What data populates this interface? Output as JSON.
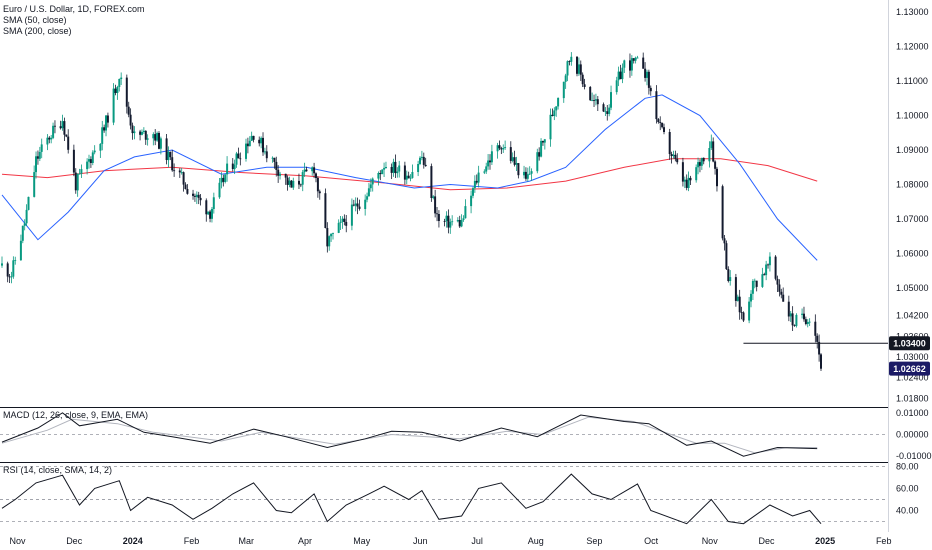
{
  "legend": {
    "title": "Euro / U.S. Dollar, 1D, FOREX.com",
    "sma50": "SMA (50, close)",
    "sma200": "SMA (200, close)"
  },
  "macd_title": "MACD (12, 26, close, 9, EMA, EMA)",
  "rsi_title": "RSI (14, close, SMA, 14, 2)",
  "colors": {
    "up": "#089981",
    "down": "#131a2e",
    "sma50": "#2962ff",
    "sma200": "#f23645",
    "label_level": "#131722",
    "label_price": "#1b1a66"
  },
  "chart_data": [
    {
      "type": "candlestick",
      "title": "Euro / U.S. Dollar, 1D, FOREX.com",
      "x_ticks": [
        "Nov",
        "Dec",
        "2024",
        "Feb",
        "Mar",
        "Apr",
        "May",
        "Jun",
        "Jul",
        "Aug",
        "Sep",
        "Oct",
        "Nov",
        "Dec",
        "2025",
        "Feb"
      ],
      "y_ticks": [
        "1.13000",
        "1.12000",
        "1.11000",
        "1.10000",
        "1.09000",
        "1.08000",
        "1.07000",
        "1.06000",
        "1.05000",
        "1.04200",
        "1.03600",
        "1.03000",
        "1.02400",
        "1.01800"
      ],
      "ylim": [
        1.0155,
        1.1335
      ],
      "anchors": [
        [
          "2023-10-27",
          1.0565
        ],
        [
          "2023-11-01",
          1.054
        ],
        [
          "2023-11-08",
          1.069
        ],
        [
          "2023-11-14",
          1.087
        ],
        [
          "2023-11-21",
          1.094
        ],
        [
          "2023-11-28",
          1.099
        ],
        [
          "2023-12-05",
          1.08
        ],
        [
          "2023-12-13",
          1.088
        ],
        [
          "2023-12-20",
          1.096
        ],
        [
          "2023-12-28",
          1.112
        ],
        [
          "2024-01-05",
          1.094
        ],
        [
          "2024-01-15",
          1.095
        ],
        [
          "2024-01-25",
          1.086
        ],
        [
          "2024-02-02",
          1.079
        ],
        [
          "2024-02-14",
          1.072
        ],
        [
          "2024-02-23",
          1.084
        ],
        [
          "2024-03-08",
          1.095
        ],
        [
          "2024-03-19",
          1.086
        ],
        [
          "2024-03-28",
          1.079
        ],
        [
          "2024-04-09",
          1.085
        ],
        [
          "2024-04-16",
          1.063
        ],
        [
          "2024-04-26",
          1.07
        ],
        [
          "2024-05-06",
          1.077
        ],
        [
          "2024-05-16",
          1.086
        ],
        [
          "2024-05-29",
          1.083
        ],
        [
          "2024-06-05",
          1.088
        ],
        [
          "2024-06-14",
          1.069
        ],
        [
          "2024-06-26",
          1.069
        ],
        [
          "2024-07-05",
          1.083
        ],
        [
          "2024-07-17",
          1.092
        ],
        [
          "2024-07-30",
          1.081
        ],
        [
          "2024-08-08",
          1.092
        ],
        [
          "2024-08-23",
          1.118
        ],
        [
          "2024-09-03",
          1.104
        ],
        [
          "2024-09-11",
          1.102
        ],
        [
          "2024-09-20",
          1.115
        ],
        [
          "2024-09-30",
          1.115
        ],
        [
          "2024-10-09",
          1.096
        ],
        [
          "2024-10-23",
          1.079
        ],
        [
          "2024-11-05",
          1.093
        ],
        [
          "2024-11-14",
          1.053
        ],
        [
          "2024-11-22",
          1.041
        ],
        [
          "2024-11-26",
          1.05
        ],
        [
          "2024-12-06",
          1.057
        ],
        [
          "2024-12-18",
          1.04
        ],
        [
          "2024-12-27",
          1.042
        ],
        [
          "2024-12-31",
          1.035
        ],
        [
          "2025-01-02",
          1.0266
        ]
      ],
      "sma50_path": [
        [
          "2023-10-27",
          1.077
        ],
        [
          "2023-11-15",
          1.064
        ],
        [
          "2023-12-01",
          1.072
        ],
        [
          "2023-12-20",
          1.084
        ],
        [
          "2024-01-05",
          1.088
        ],
        [
          "2024-01-25",
          1.09
        ],
        [
          "2024-02-20",
          1.083
        ],
        [
          "2024-03-15",
          1.085
        ],
        [
          "2024-04-05",
          1.085
        ],
        [
          "2024-05-01",
          1.082
        ],
        [
          "2024-06-01",
          1.079
        ],
        [
          "2024-06-20",
          1.08
        ],
        [
          "2024-07-15",
          1.079
        ],
        [
          "2024-08-01",
          1.081
        ],
        [
          "2024-08-20",
          1.085
        ],
        [
          "2024-09-10",
          1.096
        ],
        [
          "2024-10-01",
          1.105
        ],
        [
          "2024-10-10",
          1.106
        ],
        [
          "2024-10-30",
          1.1
        ],
        [
          "2024-11-20",
          1.086
        ],
        [
          "2024-12-10",
          1.07
        ],
        [
          "2024-12-31",
          1.058
        ]
      ],
      "sma200_path": [
        [
          "2023-10-27",
          1.083
        ],
        [
          "2023-11-20",
          1.082
        ],
        [
          "2023-12-20",
          1.084
        ],
        [
          "2024-01-25",
          1.085
        ],
        [
          "2024-03-01",
          1.0835
        ],
        [
          "2024-04-05",
          1.0825
        ],
        [
          "2024-05-15",
          1.0805
        ],
        [
          "2024-06-20",
          1.0785
        ],
        [
          "2024-07-20",
          1.079
        ],
        [
          "2024-08-20",
          1.081
        ],
        [
          "2024-09-20",
          1.085
        ],
        [
          "2024-10-15",
          1.0875
        ],
        [
          "2024-11-10",
          1.0875
        ],
        [
          "2024-12-05",
          1.0855
        ],
        [
          "2024-12-31",
          1.081
        ]
      ],
      "horizontal_level": {
        "value": 1.034,
        "label": "1.03400",
        "from": "2024-11-22"
      },
      "last_price": {
        "value": 1.02662,
        "label": "1.02662"
      }
    },
    {
      "type": "line",
      "title": "MACD (12, 26, close, 9, EMA, EMA)",
      "y_ticks": [
        "0.01000",
        "0.00000",
        "-0.01000"
      ],
      "ylim": [
        -0.0127,
        0.0127
      ],
      "series": [
        {
          "values": [
            [
              "2023-10-27",
              -0.0035
            ],
            [
              "2023-11-15",
              0.003
            ],
            [
              "2023-11-28",
              0.01
            ],
            [
              "2023-12-07",
              0.004
            ],
            [
              "2023-12-27",
              0.007
            ],
            [
              "2024-01-10",
              0.001
            ],
            [
              "2024-01-25",
              -0.001
            ],
            [
              "2024-02-14",
              -0.004
            ],
            [
              "2024-03-08",
              0.0025
            ],
            [
              "2024-03-25",
              -0.001
            ],
            [
              "2024-04-16",
              -0.006
            ],
            [
              "2024-05-06",
              -0.002
            ],
            [
              "2024-05-20",
              0.0015
            ],
            [
              "2024-06-05",
              0.001
            ],
            [
              "2024-06-25",
              -0.003
            ],
            [
              "2024-07-17",
              0.003
            ],
            [
              "2024-08-05",
              -0.001
            ],
            [
              "2024-08-28",
              0.009
            ],
            [
              "2024-09-20",
              0.006
            ],
            [
              "2024-10-03",
              0.005
            ],
            [
              "2024-10-23",
              -0.005
            ],
            [
              "2024-11-05",
              -0.003
            ],
            [
              "2024-11-22",
              -0.01
            ],
            [
              "2024-12-10",
              -0.006
            ],
            [
              "2024-12-31",
              -0.0065
            ]
          ]
        },
        {
          "values": [
            [
              "2023-10-27",
              -0.004
            ],
            [
              "2023-11-20",
              0.002
            ],
            [
              "2023-12-03",
              0.007
            ],
            [
              "2023-12-27",
              0.005
            ],
            [
              "2024-01-15",
              0.001
            ],
            [
              "2024-02-20",
              -0.003
            ],
            [
              "2024-03-12",
              0.001
            ],
            [
              "2024-04-20",
              -0.0045
            ],
            [
              "2024-05-20",
              0.0
            ],
            [
              "2024-06-25",
              -0.002
            ],
            [
              "2024-07-20",
              0.0015
            ],
            [
              "2024-08-08",
              0.0
            ],
            [
              "2024-09-01",
              0.008
            ],
            [
              "2024-09-25",
              0.006
            ],
            [
              "2024-10-28",
              -0.004
            ],
            [
              "2024-11-12",
              -0.004
            ],
            [
              "2024-11-28",
              -0.0085
            ],
            [
              "2024-12-15",
              -0.006
            ],
            [
              "2024-12-31",
              -0.006
            ]
          ]
        }
      ]
    },
    {
      "type": "line",
      "title": "RSI (14, close, SMA, 14, 2)",
      "y_ticks": [
        "80.00",
        "60.00",
        "40.00"
      ],
      "ylim": [
        25,
        84
      ],
      "series": [
        {
          "values": [
            [
              "2023-10-27",
              42
            ],
            [
              "2023-11-03",
              50
            ],
            [
              "2023-11-14",
              65
            ],
            [
              "2023-11-28",
              72
            ],
            [
              "2023-12-07",
              45
            ],
            [
              "2023-12-15",
              60
            ],
            [
              "2023-12-28",
              67
            ],
            [
              "2024-01-03",
              40
            ],
            [
              "2024-01-12",
              52
            ],
            [
              "2024-01-25",
              45
            ],
            [
              "2024-02-05",
              32
            ],
            [
              "2024-02-15",
              42
            ],
            [
              "2024-02-26",
              55
            ],
            [
              "2024-03-08",
              65
            ],
            [
              "2024-03-20",
              40
            ],
            [
              "2024-03-28",
              38
            ],
            [
              "2024-04-09",
              55
            ],
            [
              "2024-04-16",
              30
            ],
            [
              "2024-04-26",
              45
            ],
            [
              "2024-05-08",
              55
            ],
            [
              "2024-05-16",
              62
            ],
            [
              "2024-05-29",
              50
            ],
            [
              "2024-06-05",
              58
            ],
            [
              "2024-06-14",
              32
            ],
            [
              "2024-06-26",
              35
            ],
            [
              "2024-07-05",
              60
            ],
            [
              "2024-07-17",
              65
            ],
            [
              "2024-07-30",
              42
            ],
            [
              "2024-08-08",
              48
            ],
            [
              "2024-08-23",
              73
            ],
            [
              "2024-09-03",
              55
            ],
            [
              "2024-09-13",
              50
            ],
            [
              "2024-09-27",
              64
            ],
            [
              "2024-10-04",
              40
            ],
            [
              "2024-10-23",
              28
            ],
            [
              "2024-11-05",
              50
            ],
            [
              "2024-11-14",
              30
            ],
            [
              "2024-11-22",
              28
            ],
            [
              "2024-12-06",
              45
            ],
            [
              "2024-12-18",
              35
            ],
            [
              "2024-12-27",
              40
            ],
            [
              "2025-01-02",
              28
            ]
          ]
        }
      ]
    }
  ]
}
